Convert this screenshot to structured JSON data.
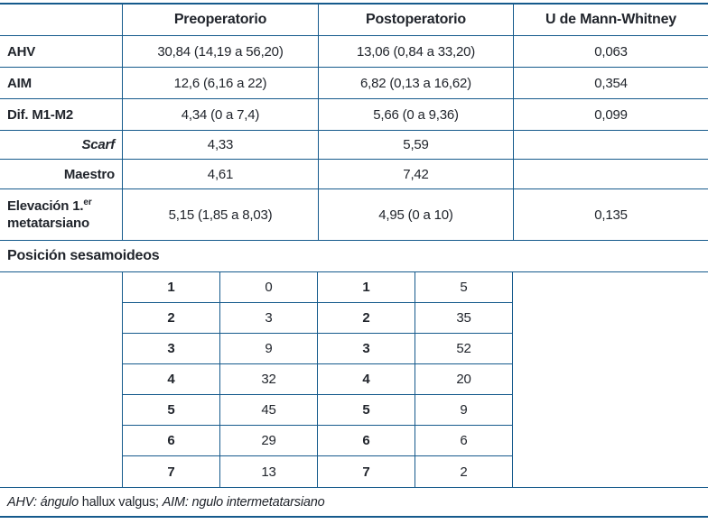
{
  "colors": {
    "border": "#155a8c",
    "text": "#21252c",
    "background": "#ffffff"
  },
  "table": {
    "header": [
      "",
      "Preoperatorio",
      "Postoperatorio",
      "U de Mann-Whitney"
    ],
    "rows": [
      {
        "label": "AHV",
        "pre": "30,84 (14,19 a 56,20)",
        "post": "13,06 (0,84 a 33,20)",
        "u": "0,063"
      },
      {
        "label": "AIM",
        "pre": "12,6 (6,16 a 22)",
        "post": "6,82 (0,13 a 16,62)",
        "u": "0,354"
      },
      {
        "label": "Dif. M1-M2",
        "pre": "4,34 (0 a 7,4)",
        "post": "5,66 (0 a 9,36)",
        "u": "0,099"
      },
      {
        "label": "Scarf",
        "pre": "4,33",
        "post": "5,59",
        "u": ""
      },
      {
        "label": "Maestro",
        "pre": "4,61",
        "post": "7,42",
        "u": ""
      },
      {
        "label1": "Elevación 1.",
        "label_sup": "er",
        "label2": "metatarsiano",
        "pre": "5,15 (1,85 a 8,03)",
        "post": "4,95 (0 a 10)",
        "u": "0,135"
      }
    ],
    "section_title": "Posición sesamoideos",
    "sesamoids": {
      "rows": [
        [
          "1",
          "0",
          "1",
          "5"
        ],
        [
          "2",
          "3",
          "2",
          "35"
        ],
        [
          "3",
          "9",
          "3",
          "52"
        ],
        [
          "4",
          "32",
          "4",
          "20"
        ],
        [
          "5",
          "45",
          "5",
          "9"
        ],
        [
          "6",
          "29",
          "6",
          "6"
        ],
        [
          "7",
          "13",
          "7",
          "2"
        ]
      ]
    },
    "footnote": {
      "abbr1": "AHV: ángulo",
      "term1": " hallux valgus; ",
      "abbr2": "AIM: ngulo intermetatarsiano"
    }
  }
}
